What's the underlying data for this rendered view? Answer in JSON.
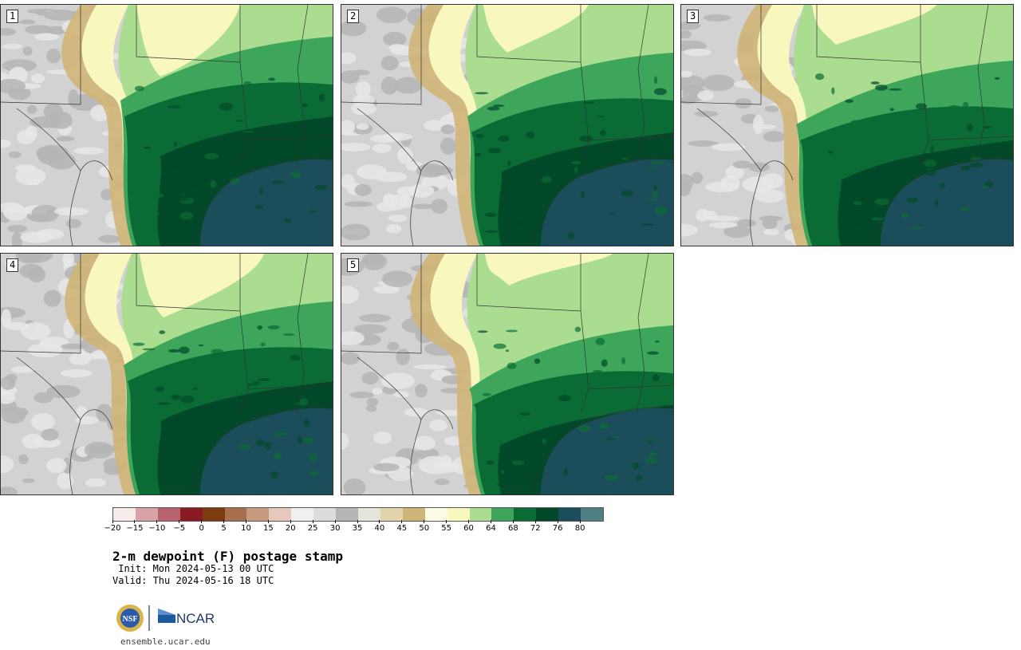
{
  "panels": [
    {
      "label": "1",
      "variant": 0
    },
    {
      "label": "2",
      "variant": 1
    },
    {
      "label": "3",
      "variant": 2
    },
    {
      "label": "4",
      "variant": 3
    },
    {
      "label": "5",
      "variant": 4
    }
  ],
  "colorbar": {
    "colors": [
      "#f5ecea",
      "#d9a2a8",
      "#b8636b",
      "#8c1a24",
      "#7f3b10",
      "#a86f4e",
      "#c79b80",
      "#e5cabb",
      "#f0f0f0",
      "#dcdcdc",
      "#b5b5b5",
      "#e6e5db",
      "#e2d3aa",
      "#cfb577",
      "#fdfde6",
      "#f8f8be",
      "#aadd8f",
      "#3ea65a",
      "#0b6b35",
      "#02492a",
      "#1b4e5a",
      "#507f84"
    ],
    "tick_labels": [
      "−20",
      "−15",
      "−10",
      "−5",
      "0",
      "5",
      "10",
      "15",
      "20",
      "25",
      "30",
      "35",
      "40",
      "45",
      "50",
      "55",
      "60",
      "64",
      "68",
      "72",
      "76",
      "80"
    ]
  },
  "map_colors": {
    "land_gray_light": "#e8e8e8",
    "land_gray": "#d2d2d2",
    "land_gray_dark": "#b5b5b5",
    "tan_light": "#e2d3aa",
    "tan": "#cfb577",
    "pale_yellow": "#f8f8be",
    "light_green": "#aadd8f",
    "medium_green": "#3ea65a",
    "green": "#0b6b35",
    "dark_green": "#02492a",
    "gulf": "#1b4e5a"
  },
  "title": "2-m dewpoint (F) postage stamp",
  "init": " Init: Mon 2024-05-13 00 UTC",
  "valid": "Valid: Thu 2024-05-16 18 UTC",
  "logo": {
    "nsf": "NSF",
    "ncar": "NCAR"
  },
  "url": "ensemble.ucar.edu"
}
